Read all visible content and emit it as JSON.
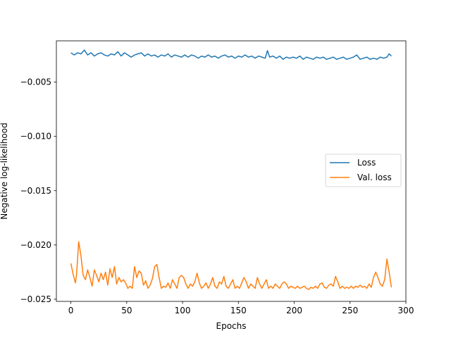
{
  "chart_data": {
    "type": "line",
    "xlabel": "Epochs",
    "ylabel": "Negative log-likelihood",
    "xlim": [
      -13,
      300
    ],
    "ylim": [
      -0.0252,
      -0.0012
    ],
    "xticks": [
      0,
      50,
      100,
      150,
      200,
      250,
      300
    ],
    "yticks": [
      -0.025,
      -0.02,
      -0.015,
      -0.01,
      -0.005
    ],
    "xtick_labels": [
      "0",
      "50",
      "100",
      "150",
      "200",
      "250",
      "300"
    ],
    "ytick_labels": [
      "−0.025",
      "−0.020",
      "−0.015",
      "−0.010",
      "−0.005"
    ],
    "grid": false,
    "legend_position": "center-right",
    "series": [
      {
        "name": "Loss",
        "color": "#1f77b4",
        "points": [
          [
            0,
            -0.0023
          ],
          [
            3,
            -0.0025
          ],
          [
            6,
            -0.0023
          ],
          [
            9,
            -0.0024
          ],
          [
            12,
            -0.00205
          ],
          [
            15,
            -0.0025
          ],
          [
            18,
            -0.0023
          ],
          [
            21,
            -0.0026
          ],
          [
            24,
            -0.0024
          ],
          [
            27,
            -0.0023
          ],
          [
            30,
            -0.0025
          ],
          [
            33,
            -0.0026
          ],
          [
            36,
            -0.0024
          ],
          [
            39,
            -0.0025
          ],
          [
            42,
            -0.0022
          ],
          [
            45,
            -0.0026
          ],
          [
            48,
            -0.0023
          ],
          [
            51,
            -0.0025
          ],
          [
            54,
            -0.0027
          ],
          [
            57,
            -0.0025
          ],
          [
            60,
            -0.0024
          ],
          [
            63,
            -0.0023
          ],
          [
            66,
            -0.0026
          ],
          [
            69,
            -0.0024
          ],
          [
            72,
            -0.0026
          ],
          [
            75,
            -0.0025
          ],
          [
            78,
            -0.0027
          ],
          [
            81,
            -0.0025
          ],
          [
            84,
            -0.0026
          ],
          [
            87,
            -0.0024
          ],
          [
            90,
            -0.0027
          ],
          [
            93,
            -0.0025
          ],
          [
            96,
            -0.0026
          ],
          [
            99,
            -0.0027
          ],
          [
            102,
            -0.0025
          ],
          [
            105,
            -0.0027
          ],
          [
            108,
            -0.0025
          ],
          [
            111,
            -0.0026
          ],
          [
            114,
            -0.0028
          ],
          [
            117,
            -0.0026
          ],
          [
            120,
            -0.0027
          ],
          [
            123,
            -0.0025
          ],
          [
            126,
            -0.0027
          ],
          [
            129,
            -0.0026
          ],
          [
            132,
            -0.0028
          ],
          [
            135,
            -0.0026
          ],
          [
            138,
            -0.0025
          ],
          [
            141,
            -0.0027
          ],
          [
            144,
            -0.0026
          ],
          [
            147,
            -0.0028
          ],
          [
            150,
            -0.0026
          ],
          [
            153,
            -0.0027
          ],
          [
            156,
            -0.0025
          ],
          [
            159,
            -0.0027
          ],
          [
            162,
            -0.0026
          ],
          [
            165,
            -0.0028
          ],
          [
            168,
            -0.0026
          ],
          [
            171,
            -0.0027
          ],
          [
            174,
            -0.0028
          ],
          [
            176,
            -0.0021
          ],
          [
            178,
            -0.0027
          ],
          [
            181,
            -0.0026
          ],
          [
            184,
            -0.0028
          ],
          [
            187,
            -0.0026
          ],
          [
            190,
            -0.0029
          ],
          [
            193,
            -0.0027
          ],
          [
            196,
            -0.0028
          ],
          [
            199,
            -0.0027
          ],
          [
            202,
            -0.0028
          ],
          [
            205,
            -0.0026
          ],
          [
            208,
            -0.0029
          ],
          [
            211,
            -0.0027
          ],
          [
            214,
            -0.0028
          ],
          [
            217,
            -0.0029
          ],
          [
            220,
            -0.0027
          ],
          [
            223,
            -0.0028
          ],
          [
            226,
            -0.0027
          ],
          [
            229,
            -0.0029
          ],
          [
            232,
            -0.0028
          ],
          [
            235,
            -0.0027
          ],
          [
            238,
            -0.0029
          ],
          [
            241,
            -0.0028
          ],
          [
            244,
            -0.0027
          ],
          [
            247,
            -0.0029
          ],
          [
            250,
            -0.0028
          ],
          [
            253,
            -0.0027
          ],
          [
            256,
            -0.0025
          ],
          [
            259,
            -0.0029
          ],
          [
            262,
            -0.0028
          ],
          [
            265,
            -0.0027
          ],
          [
            268,
            -0.0029
          ],
          [
            271,
            -0.0028
          ],
          [
            274,
            -0.0029
          ],
          [
            277,
            -0.0027
          ],
          [
            280,
            -0.0028
          ],
          [
            283,
            -0.0027
          ],
          [
            285,
            -0.0024
          ],
          [
            287,
            -0.0026
          ]
        ]
      },
      {
        "name": "Val. loss",
        "color": "#ff7f0e",
        "points": [
          [
            0,
            -0.0217
          ],
          [
            2,
            -0.0227
          ],
          [
            4,
            -0.0235
          ],
          [
            5,
            -0.0228
          ],
          [
            7,
            -0.0197
          ],
          [
            9,
            -0.021
          ],
          [
            11,
            -0.0228
          ],
          [
            13,
            -0.0232
          ],
          [
            15,
            -0.0223
          ],
          [
            17,
            -0.023
          ],
          [
            19,
            -0.0238
          ],
          [
            21,
            -0.0223
          ],
          [
            23,
            -0.0228
          ],
          [
            25,
            -0.0234
          ],
          [
            27,
            -0.0226
          ],
          [
            29,
            -0.0232
          ],
          [
            31,
            -0.0225
          ],
          [
            33,
            -0.0237
          ],
          [
            35,
            -0.0222
          ],
          [
            37,
            -0.023
          ],
          [
            39,
            -0.022
          ],
          [
            41,
            -0.0236
          ],
          [
            43,
            -0.023
          ],
          [
            45,
            -0.0234
          ],
          [
            47,
            -0.0232
          ],
          [
            49,
            -0.0235
          ],
          [
            51,
            -0.024
          ],
          [
            53,
            -0.0238
          ],
          [
            55,
            -0.024
          ],
          [
            57,
            -0.022
          ],
          [
            59,
            -0.023
          ],
          [
            61,
            -0.0224
          ],
          [
            63,
            -0.0226
          ],
          [
            65,
            -0.0237
          ],
          [
            67,
            -0.0233
          ],
          [
            69,
            -0.024
          ],
          [
            71,
            -0.0237
          ],
          [
            73,
            -0.0231
          ],
          [
            75,
            -0.022
          ],
          [
            77,
            -0.0218
          ],
          [
            79,
            -0.023
          ],
          [
            81,
            -0.024
          ],
          [
            83,
            -0.0238
          ],
          [
            85,
            -0.0239
          ],
          [
            87,
            -0.0235
          ],
          [
            89,
            -0.024
          ],
          [
            91,
            -0.0232
          ],
          [
            93,
            -0.0236
          ],
          [
            95,
            -0.024
          ],
          [
            97,
            -0.023
          ],
          [
            99,
            -0.0228
          ],
          [
            101,
            -0.023
          ],
          [
            103,
            -0.0236
          ],
          [
            105,
            -0.024
          ],
          [
            107,
            -0.0236
          ],
          [
            109,
            -0.0238
          ],
          [
            111,
            -0.0234
          ],
          [
            113,
            -0.0226
          ],
          [
            115,
            -0.0235
          ],
          [
            117,
            -0.024
          ],
          [
            119,
            -0.0238
          ],
          [
            121,
            -0.0235
          ],
          [
            123,
            -0.024
          ],
          [
            125,
            -0.0236
          ],
          [
            127,
            -0.023
          ],
          [
            129,
            -0.0238
          ],
          [
            131,
            -0.024
          ],
          [
            133,
            -0.0234
          ],
          [
            135,
            -0.0236
          ],
          [
            137,
            -0.0229
          ],
          [
            139,
            -0.0238
          ],
          [
            141,
            -0.024
          ],
          [
            143,
            -0.0236
          ],
          [
            145,
            -0.0232
          ],
          [
            147,
            -0.024
          ],
          [
            149,
            -0.0238
          ],
          [
            151,
            -0.024
          ],
          [
            153,
            -0.0235
          ],
          [
            155,
            -0.023
          ],
          [
            157,
            -0.0234
          ],
          [
            159,
            -0.024
          ],
          [
            161,
            -0.0236
          ],
          [
            163,
            -0.0238
          ],
          [
            165,
            -0.024
          ],
          [
            167,
            -0.023
          ],
          [
            169,
            -0.0236
          ],
          [
            171,
            -0.024
          ],
          [
            173,
            -0.0236
          ],
          [
            175,
            -0.0232
          ],
          [
            177,
            -0.024
          ],
          [
            179,
            -0.0238
          ],
          [
            181,
            -0.024
          ],
          [
            183,
            -0.0236
          ],
          [
            185,
            -0.0238
          ],
          [
            187,
            -0.024
          ],
          [
            189,
            -0.0236
          ],
          [
            191,
            -0.0234
          ],
          [
            193,
            -0.0236
          ],
          [
            195,
            -0.024
          ],
          [
            197,
            -0.0238
          ],
          [
            199,
            -0.0239
          ],
          [
            201,
            -0.024
          ],
          [
            203,
            -0.0238
          ],
          [
            205,
            -0.024
          ],
          [
            207,
            -0.0239
          ],
          [
            209,
            -0.0238
          ],
          [
            211,
            -0.024
          ],
          [
            213,
            -0.0241
          ],
          [
            215,
            -0.0239
          ],
          [
            217,
            -0.024
          ],
          [
            219,
            -0.0238
          ],
          [
            221,
            -0.024
          ],
          [
            223,
            -0.0236
          ],
          [
            225,
            -0.0235
          ],
          [
            227,
            -0.0239
          ],
          [
            229,
            -0.024
          ],
          [
            231,
            -0.0237
          ],
          [
            233,
            -0.0236
          ],
          [
            235,
            -0.0238
          ],
          [
            237,
            -0.0229
          ],
          [
            239,
            -0.0234
          ],
          [
            241,
            -0.024
          ],
          [
            243,
            -0.0238
          ],
          [
            245,
            -0.024
          ],
          [
            247,
            -0.0239
          ],
          [
            249,
            -0.024
          ],
          [
            251,
            -0.0238
          ],
          [
            253,
            -0.024
          ],
          [
            255,
            -0.0238
          ],
          [
            257,
            -0.0239
          ],
          [
            259,
            -0.0237
          ],
          [
            261,
            -0.0239
          ],
          [
            263,
            -0.0238
          ],
          [
            265,
            -0.024
          ],
          [
            267,
            -0.0236
          ],
          [
            269,
            -0.0239
          ],
          [
            271,
            -0.023
          ],
          [
            273,
            -0.0225
          ],
          [
            275,
            -0.023
          ],
          [
            277,
            -0.0236
          ],
          [
            279,
            -0.0238
          ],
          [
            281,
            -0.0232
          ],
          [
            283,
            -0.0213
          ],
          [
            285,
            -0.0225
          ],
          [
            287,
            -0.0239
          ]
        ]
      }
    ]
  }
}
